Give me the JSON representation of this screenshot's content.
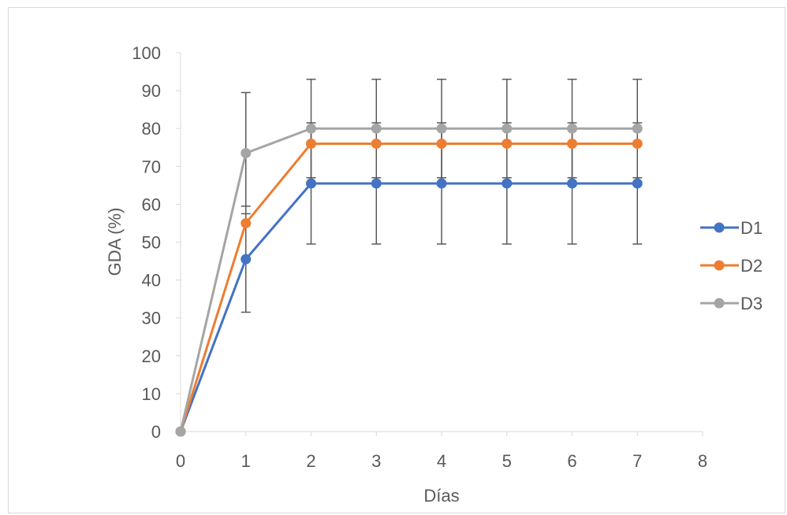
{
  "chart_data": {
    "type": "line",
    "title": "",
    "xlabel": "Días",
    "ylabel": "GDA (%)",
    "x": [
      0,
      1,
      2,
      3,
      4,
      5,
      6,
      7
    ],
    "xlim": [
      0,
      8
    ],
    "ylim": [
      0,
      100
    ],
    "xticks": [
      0,
      1,
      2,
      3,
      4,
      5,
      6,
      7,
      8
    ],
    "yticks": [
      0,
      10,
      20,
      30,
      40,
      50,
      60,
      70,
      80,
      90,
      100
    ],
    "grid": false,
    "legend_position": "right",
    "series": [
      {
        "name": "D1",
        "color": "#4472C4",
        "values": [
          0,
          45.5,
          65.5,
          65.5,
          65.5,
          65.5,
          65.5,
          65.5
        ],
        "error": [
          0,
          14,
          16,
          16,
          16,
          16,
          16,
          16
        ]
      },
      {
        "name": "D2",
        "color": "#ED7D31",
        "values": [
          0,
          55,
          76,
          76,
          76,
          76,
          76,
          76
        ],
        "error": [
          0,
          0,
          0,
          0,
          0,
          0,
          0,
          0
        ]
      },
      {
        "name": "D3",
        "color": "#A5A5A5",
        "values": [
          0,
          73.5,
          80,
          80,
          80,
          80,
          80,
          80
        ],
        "error": [
          0,
          16,
          13,
          13,
          13,
          13,
          13,
          13
        ]
      }
    ],
    "error_bar_color": "#595959"
  }
}
